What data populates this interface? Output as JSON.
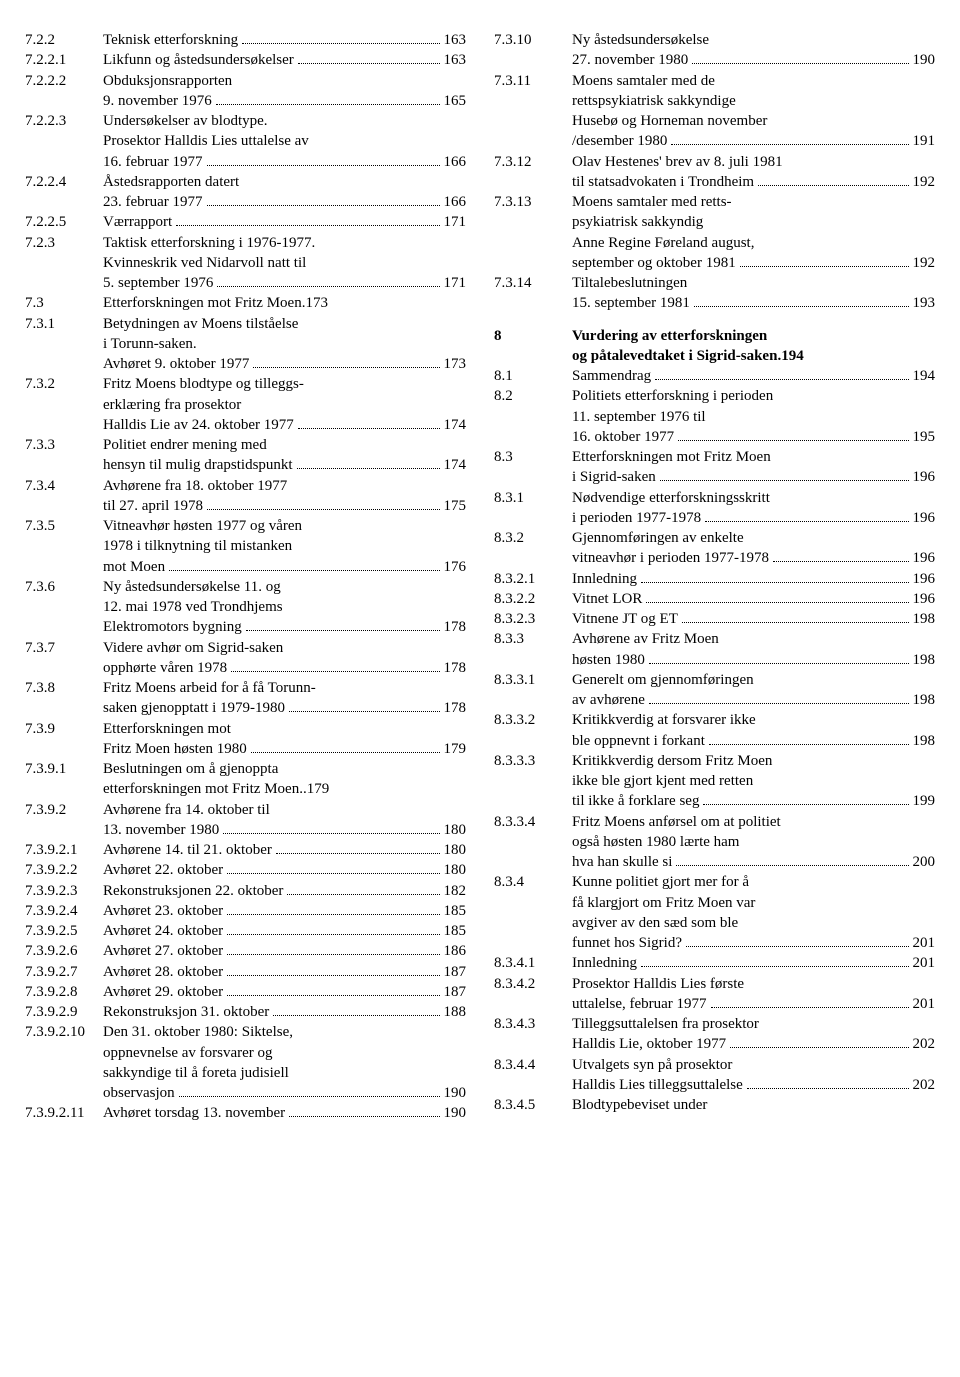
{
  "left": [
    {
      "num": "7.2.2",
      "lines": [
        {
          "t": "Teknisk etterforskning",
          "p": "163"
        }
      ]
    },
    {
      "num": "7.2.2.1",
      "lines": [
        {
          "t": "Likfunn og åstedsundersøkelser",
          "p": "163"
        }
      ]
    },
    {
      "num": "7.2.2.2",
      "lines": [
        {
          "t": "Obduksjonsrapporten"
        },
        {
          "t": "9. november 1976",
          "p": "165"
        }
      ]
    },
    {
      "num": "7.2.2.3",
      "lines": [
        {
          "t": "Undersøkelser av blodtype."
        },
        {
          "t": "Prosektor Halldis Lies uttalelse av"
        },
        {
          "t": "16. februar 1977",
          "p": "166"
        }
      ]
    },
    {
      "num": "7.2.2.4",
      "lines": [
        {
          "t": "Åstedsrapporten datert"
        },
        {
          "t": "23. februar 1977",
          "p": "166"
        }
      ]
    },
    {
      "num": "7.2.2.5",
      "lines": [
        {
          "t": "Værrapport",
          "p": "171"
        }
      ]
    },
    {
      "num": "7.2.3",
      "lines": [
        {
          "t": "Taktisk etterforskning i 1976-1977."
        },
        {
          "t": "Kvinneskrik ved Nidarvoll natt til"
        },
        {
          "t": "5. september 1976",
          "p": "171"
        }
      ]
    },
    {
      "num": "7.3",
      "lines": [
        {
          "t": "Etterforskningen mot Fritz Moen",
          "p": "173",
          "sep": "."
        }
      ]
    },
    {
      "num": "7.3.1",
      "lines": [
        {
          "t": "Betydningen av Moens tilståelse"
        },
        {
          "t": " i Torunn-saken."
        },
        {
          "t": "Avhøret 9. oktober 1977",
          "p": "173"
        }
      ]
    },
    {
      "num": "7.3.2",
      "lines": [
        {
          "t": "Fritz Moens blodtype og tilleggs-"
        },
        {
          "t": "erklæring fra prosektor"
        },
        {
          "t": "Halldis Lie av 24. oktober 1977",
          "p": "174"
        }
      ]
    },
    {
      "num": "7.3.3",
      "lines": [
        {
          "t": "Politiet endrer mening med"
        },
        {
          "t": "hensyn til mulig drapstidspunkt",
          "p": "174"
        }
      ]
    },
    {
      "num": "7.3.4",
      "lines": [
        {
          "t": "Avhørene fra 18. oktober 1977"
        },
        {
          "t": "til 27. april 1978",
          "p": "175"
        }
      ]
    },
    {
      "num": "7.3.5",
      "lines": [
        {
          "t": "Vitneavhør høsten 1977 og våren"
        },
        {
          "t": "1978 i tilknytning til mistanken"
        },
        {
          "t": "mot Moen",
          "p": "176"
        }
      ]
    },
    {
      "num": "7.3.6",
      "lines": [
        {
          "t": "Ny åstedsundersøkelse 11. og"
        },
        {
          "t": "12. mai 1978 ved Trondhjems"
        },
        {
          "t": "Elektromotors bygning",
          "p": "178"
        }
      ]
    },
    {
      "num": "7.3.7",
      "lines": [
        {
          "t": "Videre avhør om Sigrid-saken"
        },
        {
          "t": "opphørte våren 1978",
          "p": "178"
        }
      ]
    },
    {
      "num": "7.3.8",
      "lines": [
        {
          "t": "Fritz Moens arbeid for å få Torunn-"
        },
        {
          "t": "saken gjenopptatt i 1979-1980",
          "p": "178"
        }
      ]
    },
    {
      "num": "7.3.9",
      "lines": [
        {
          "t": "Etterforskningen mot"
        },
        {
          "t": "Fritz Moen høsten 1980",
          "p": "179"
        }
      ]
    },
    {
      "num": "7.3.9.1",
      "lines": [
        {
          "t": "Beslutningen om å gjenoppta"
        },
        {
          "t": "etterforskningen mot Fritz Moen",
          "p": "179",
          "sep": ".."
        }
      ]
    },
    {
      "num": "7.3.9.2",
      "lines": [
        {
          "t": "Avhørene fra 14. oktober til"
        },
        {
          "t": "13. november 1980",
          "p": "180"
        }
      ]
    },
    {
      "num": "7.3.9.2.1",
      "lines": [
        {
          "t": "Avhørene 14. til 21. oktober",
          "p": "180"
        }
      ]
    },
    {
      "num": "7.3.9.2.2",
      "lines": [
        {
          "t": "Avhøret 22. oktober",
          "p": "180"
        }
      ]
    },
    {
      "num": "7.3.9.2.3",
      "lines": [
        {
          "t": "Rekonstruksjonen 22. oktober",
          "p": "182"
        }
      ]
    },
    {
      "num": "7.3.9.2.4",
      "lines": [
        {
          "t": "Avhøret 23. oktober",
          "p": "185"
        }
      ]
    },
    {
      "num": "7.3.9.2.5",
      "lines": [
        {
          "t": "Avhøret 24. oktober",
          "p": "185"
        }
      ]
    },
    {
      "num": "7.3.9.2.6",
      "lines": [
        {
          "t": "Avhøret 27. oktober",
          "p": "186"
        }
      ]
    },
    {
      "num": "7.3.9.2.7",
      "lines": [
        {
          "t": "Avhøret 28. oktober",
          "p": "187"
        }
      ]
    },
    {
      "num": "7.3.9.2.8",
      "lines": [
        {
          "t": "Avhøret 29. oktober",
          "p": "187"
        }
      ]
    },
    {
      "num": "7.3.9.2.9",
      "lines": [
        {
          "t": "Rekonstruksjon 31. oktober",
          "p": "188"
        }
      ]
    },
    {
      "num": "7.3.9.2.10",
      "lines": [
        {
          "t": "Den 31. oktober 1980: Siktelse,"
        },
        {
          "t": "oppnevnelse av forsvarer og"
        },
        {
          "t": "sakkyndige til å foreta judisiell"
        },
        {
          "t": "observasjon",
          "p": "190"
        }
      ]
    },
    {
      "num": "7.3.9.2.11",
      "lines": [
        {
          "t": "Avhøret torsdag 13. november",
          "p": "190"
        }
      ]
    }
  ],
  "right": [
    {
      "num": "7.3.10",
      "lines": [
        {
          "t": "Ny åstedsundersøkelse"
        },
        {
          "t": "27. november 1980",
          "p": "190"
        }
      ]
    },
    {
      "num": "7.3.11",
      "lines": [
        {
          "t": "Moens samtaler med de"
        },
        {
          "t": "rettspsykiatrisk sakkyndige"
        },
        {
          "t": "Husebø og Horneman november"
        },
        {
          "t": "/desember 1980",
          "p": "191"
        }
      ]
    },
    {
      "num": "7.3.12",
      "lines": [
        {
          "t": "Olav Hestenes' brev av 8. juli 1981"
        },
        {
          "t": "til statsadvokaten i Trondheim",
          "p": "192"
        }
      ]
    },
    {
      "num": "7.3.13",
      "lines": [
        {
          "t": "Moens samtaler med retts-"
        },
        {
          "t": "psykiatrisk sakkyndig"
        },
        {
          "t": "Anne Regine Føreland august,"
        },
        {
          "t": "september og oktober 1981",
          "p": "192"
        }
      ]
    },
    {
      "num": "7.3.14",
      "lines": [
        {
          "t": "Tiltalebeslutningen"
        },
        {
          "t": "15. september 1981",
          "p": "193"
        }
      ]
    },
    {
      "spacer": true
    },
    {
      "num": "8",
      "bold": true,
      "lines": [
        {
          "t": "Vurdering av etterforskningen"
        },
        {
          "t": "og påtalevedtaket i Sigrid-saken",
          "p": "194",
          "sep": "."
        }
      ]
    },
    {
      "num": "8.1",
      "lines": [
        {
          "t": "Sammendrag",
          "p": "194"
        }
      ]
    },
    {
      "num": "8.2",
      "lines": [
        {
          "t": "Politiets etterforskning i perioden"
        },
        {
          "t": "11. september 1976 til"
        },
        {
          "t": "16. oktober 1977",
          "p": "195"
        }
      ]
    },
    {
      "num": "8.3",
      "lines": [
        {
          "t": "Etterforskningen mot Fritz Moen"
        },
        {
          "t": "i Sigrid-saken",
          "p": "196"
        }
      ]
    },
    {
      "num": "8.3.1",
      "lines": [
        {
          "t": "Nødvendige etterforskningsskritt"
        },
        {
          "t": "i perioden 1977-1978",
          "p": "196"
        }
      ]
    },
    {
      "num": "8.3.2",
      "lines": [
        {
          "t": "Gjennomføringen av enkelte"
        },
        {
          "t": "vitneavhør i perioden 1977-1978",
          "p": "196"
        }
      ]
    },
    {
      "num": "8.3.2.1",
      "lines": [
        {
          "t": "Innledning",
          "p": "196"
        }
      ]
    },
    {
      "num": "8.3.2.2",
      "lines": [
        {
          "t": "Vitnet LOR",
          "p": "196"
        }
      ]
    },
    {
      "num": "8.3.2.3",
      "lines": [
        {
          "t": "Vitnene JT og ET",
          "p": "198"
        }
      ]
    },
    {
      "num": "8.3.3",
      "lines": [
        {
          "t": "Avhørene av Fritz Moen"
        },
        {
          "t": "høsten 1980",
          "p": "198"
        }
      ]
    },
    {
      "num": "8.3.3.1",
      "lines": [
        {
          "t": "Generelt om gjennomføringen"
        },
        {
          "t": "av avhørene",
          "p": "198"
        }
      ]
    },
    {
      "num": "8.3.3.2",
      "lines": [
        {
          "t": "Kritikkverdig at forsvarer ikke"
        },
        {
          "t": "ble oppnevnt i forkant",
          "p": "198"
        }
      ]
    },
    {
      "num": "8.3.3.3",
      "lines": [
        {
          "t": "Kritikkverdig dersom Fritz Moen"
        },
        {
          "t": "ikke ble gjort kjent med retten"
        },
        {
          "t": "til ikke å forklare seg",
          "p": "199"
        }
      ]
    },
    {
      "num": "8.3.3.4",
      "lines": [
        {
          "t": "Fritz Moens anførsel om at politiet"
        },
        {
          "t": "også høsten 1980 lærte ham"
        },
        {
          "t": "hva han skulle si",
          "p": "200"
        }
      ]
    },
    {
      "num": "8.3.4",
      "lines": [
        {
          "t": "Kunne politiet gjort mer for å"
        },
        {
          "t": "få klargjort om Fritz Moen var"
        },
        {
          "t": "avgiver av den sæd som ble"
        },
        {
          "t": "funnet hos Sigrid?",
          "p": "201"
        }
      ]
    },
    {
      "num": "8.3.4.1",
      "lines": [
        {
          "t": "Innledning",
          "p": "201"
        }
      ]
    },
    {
      "num": "8.3.4.2",
      "lines": [
        {
          "t": "Prosektor Halldis Lies første"
        },
        {
          "t": "uttalelse, februar 1977",
          "p": "201"
        }
      ]
    },
    {
      "num": "8.3.4.3",
      "lines": [
        {
          "t": "Tilleggsuttalelsen fra prosektor"
        },
        {
          "t": "Halldis Lie, oktober 1977",
          "p": "202"
        }
      ]
    },
    {
      "num": "8.3.4.4",
      "lines": [
        {
          "t": "Utvalgets syn på prosektor"
        },
        {
          "t": "Halldis Lies tilleggsuttalelse",
          "p": "202"
        }
      ]
    },
    {
      "num": "8.3.4.5",
      "lines": [
        {
          "t": "Blodtypebeviset under"
        }
      ]
    }
  ]
}
